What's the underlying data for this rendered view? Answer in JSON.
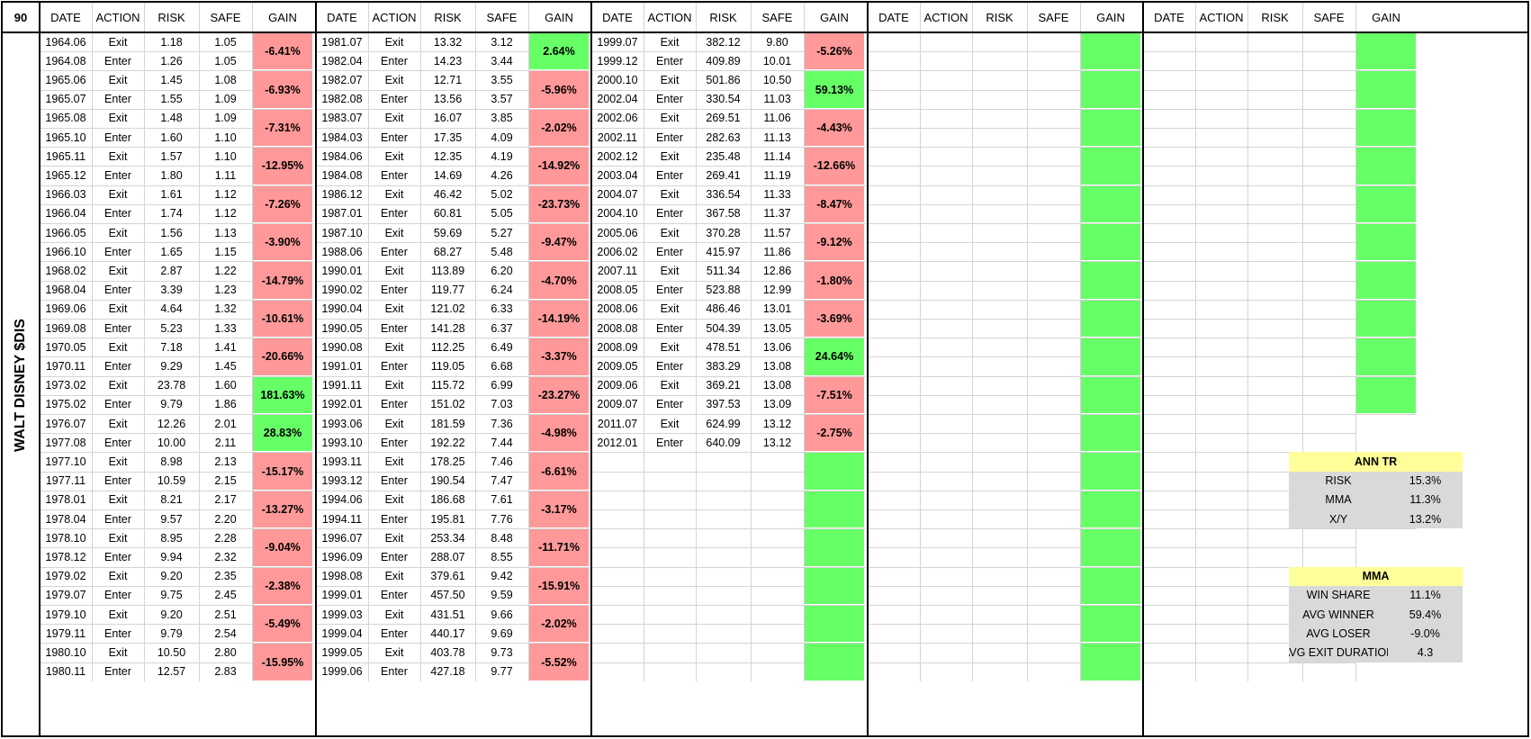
{
  "corner": "90",
  "ticker_label": "WALT DISNEY $DIS",
  "headers": [
    "DATE",
    "ACTION",
    "RISK",
    "SAFE",
    "GAIN"
  ],
  "colors": {
    "loss": "#ff9999",
    "win": "#66ff66",
    "summary_header": "#ffff99",
    "summary_body": "#d9d9d9"
  },
  "blocks": [
    {
      "trades": [
        {
          "exit_date": "1964.06",
          "exit_action": "Exit",
          "exit_risk": "1.18",
          "exit_safe": "1.05",
          "enter_date": "1964.08",
          "enter_action": "Enter",
          "enter_risk": "1.26",
          "enter_safe": "1.05",
          "gain": "-6.41%"
        },
        {
          "exit_date": "1965.06",
          "exit_action": "Exit",
          "exit_risk": "1.45",
          "exit_safe": "1.08",
          "enter_date": "1965.07",
          "enter_action": "Enter",
          "enter_risk": "1.55",
          "enter_safe": "1.09",
          "gain": "-6.93%"
        },
        {
          "exit_date": "1965.08",
          "exit_action": "Exit",
          "exit_risk": "1.48",
          "exit_safe": "1.09",
          "enter_date": "1965.10",
          "enter_action": "Enter",
          "enter_risk": "1.60",
          "enter_safe": "1.10",
          "gain": "-7.31%"
        },
        {
          "exit_date": "1965.11",
          "exit_action": "Exit",
          "exit_risk": "1.57",
          "exit_safe": "1.10",
          "enter_date": "1965.12",
          "enter_action": "Enter",
          "enter_risk": "1.80",
          "enter_safe": "1.11",
          "gain": "-12.95%"
        },
        {
          "exit_date": "1966.03",
          "exit_action": "Exit",
          "exit_risk": "1.61",
          "exit_safe": "1.12",
          "enter_date": "1966.04",
          "enter_action": "Enter",
          "enter_risk": "1.74",
          "enter_safe": "1.12",
          "gain": "-7.26%"
        },
        {
          "exit_date": "1966.05",
          "exit_action": "Exit",
          "exit_risk": "1.56",
          "exit_safe": "1.13",
          "enter_date": "1966.10",
          "enter_action": "Enter",
          "enter_risk": "1.65",
          "enter_safe": "1.15",
          "gain": "-3.90%"
        },
        {
          "exit_date": "1968.02",
          "exit_action": "Exit",
          "exit_risk": "2.87",
          "exit_safe": "1.22",
          "enter_date": "1968.04",
          "enter_action": "Enter",
          "enter_risk": "3.39",
          "enter_safe": "1.23",
          "gain": "-14.79%"
        },
        {
          "exit_date": "1969.06",
          "exit_action": "Exit",
          "exit_risk": "4.64",
          "exit_safe": "1.32",
          "enter_date": "1969.08",
          "enter_action": "Enter",
          "enter_risk": "5.23",
          "enter_safe": "1.33",
          "gain": "-10.61%"
        },
        {
          "exit_date": "1970.05",
          "exit_action": "Exit",
          "exit_risk": "7.18",
          "exit_safe": "1.41",
          "enter_date": "1970.11",
          "enter_action": "Enter",
          "enter_risk": "9.29",
          "enter_safe": "1.45",
          "gain": "-20.66%"
        },
        {
          "exit_date": "1973.02",
          "exit_action": "Exit",
          "exit_risk": "23.78",
          "exit_safe": "1.60",
          "enter_date": "1975.02",
          "enter_action": "Enter",
          "enter_risk": "9.79",
          "enter_safe": "1.86",
          "gain": "181.63%"
        },
        {
          "exit_date": "1976.07",
          "exit_action": "Exit",
          "exit_risk": "12.26",
          "exit_safe": "2.01",
          "enter_date": "1977.08",
          "enter_action": "Enter",
          "enter_risk": "10.00",
          "enter_safe": "2.11",
          "gain": "28.83%"
        },
        {
          "exit_date": "1977.10",
          "exit_action": "Exit",
          "exit_risk": "8.98",
          "exit_safe": "2.13",
          "enter_date": "1977.11",
          "enter_action": "Enter",
          "enter_risk": "10.59",
          "enter_safe": "2.15",
          "gain": "-15.17%"
        },
        {
          "exit_date": "1978.01",
          "exit_action": "Exit",
          "exit_risk": "8.21",
          "exit_safe": "2.17",
          "enter_date": "1978.04",
          "enter_action": "Enter",
          "enter_risk": "9.57",
          "enter_safe": "2.20",
          "gain": "-13.27%"
        },
        {
          "exit_date": "1978.10",
          "exit_action": "Exit",
          "exit_risk": "8.95",
          "exit_safe": "2.28",
          "enter_date": "1978.12",
          "enter_action": "Enter",
          "enter_risk": "9.94",
          "enter_safe": "2.32",
          "gain": "-9.04%"
        },
        {
          "exit_date": "1979.02",
          "exit_action": "Exit",
          "exit_risk": "9.20",
          "exit_safe": "2.35",
          "enter_date": "1979.07",
          "enter_action": "Enter",
          "enter_risk": "9.75",
          "enter_safe": "2.45",
          "gain": "-2.38%"
        },
        {
          "exit_date": "1979.10",
          "exit_action": "Exit",
          "exit_risk": "9.20",
          "exit_safe": "2.51",
          "enter_date": "1979.11",
          "enter_action": "Enter",
          "enter_risk": "9.79",
          "enter_safe": "2.54",
          "gain": "-5.49%"
        },
        {
          "exit_date": "1980.10",
          "exit_action": "Exit",
          "exit_risk": "10.50",
          "exit_safe": "2.80",
          "enter_date": "1980.11",
          "enter_action": "Enter",
          "enter_risk": "12.57",
          "enter_safe": "2.83",
          "gain": "-15.95%"
        }
      ]
    },
    {
      "trades": [
        {
          "exit_date": "1981.07",
          "exit_action": "Exit",
          "exit_risk": "13.32",
          "exit_safe": "3.12",
          "enter_date": "1982.04",
          "enter_action": "Enter",
          "enter_risk": "14.23",
          "enter_safe": "3.44",
          "gain": "2.64%"
        },
        {
          "exit_date": "1982.07",
          "exit_action": "Exit",
          "exit_risk": "12.71",
          "exit_safe": "3.55",
          "enter_date": "1982.08",
          "enter_action": "Enter",
          "enter_risk": "13.56",
          "enter_safe": "3.57",
          "gain": "-5.96%"
        },
        {
          "exit_date": "1983.07",
          "exit_action": "Exit",
          "exit_risk": "16.07",
          "exit_safe": "3.85",
          "enter_date": "1984.03",
          "enter_action": "Enter",
          "enter_risk": "17.35",
          "enter_safe": "4.09",
          "gain": "-2.02%"
        },
        {
          "exit_date": "1984.06",
          "exit_action": "Exit",
          "exit_risk": "12.35",
          "exit_safe": "4.19",
          "enter_date": "1984.08",
          "enter_action": "Enter",
          "enter_risk": "14.69",
          "enter_safe": "4.26",
          "gain": "-14.92%"
        },
        {
          "exit_date": "1986.12",
          "exit_action": "Exit",
          "exit_risk": "46.42",
          "exit_safe": "5.02",
          "enter_date": "1987.01",
          "enter_action": "Enter",
          "enter_risk": "60.81",
          "enter_safe": "5.05",
          "gain": "-23.73%"
        },
        {
          "exit_date": "1987.10",
          "exit_action": "Exit",
          "exit_risk": "59.69",
          "exit_safe": "5.27",
          "enter_date": "1988.06",
          "enter_action": "Enter",
          "enter_risk": "68.27",
          "enter_safe": "5.48",
          "gain": "-9.47%"
        },
        {
          "exit_date": "1990.01",
          "exit_action": "Exit",
          "exit_risk": "113.89",
          "exit_safe": "6.20",
          "enter_date": "1990.02",
          "enter_action": "Enter",
          "enter_risk": "119.77",
          "enter_safe": "6.24",
          "gain": "-4.70%"
        },
        {
          "exit_date": "1990.04",
          "exit_action": "Exit",
          "exit_risk": "121.02",
          "exit_safe": "6.33",
          "enter_date": "1990.05",
          "enter_action": "Enter",
          "enter_risk": "141.28",
          "enter_safe": "6.37",
          "gain": "-14.19%"
        },
        {
          "exit_date": "1990.08",
          "exit_action": "Exit",
          "exit_risk": "112.25",
          "exit_safe": "6.49",
          "enter_date": "1991.01",
          "enter_action": "Enter",
          "enter_risk": "119.05",
          "enter_safe": "6.68",
          "gain": "-3.37%"
        },
        {
          "exit_date": "1991.11",
          "exit_action": "Exit",
          "exit_risk": "115.72",
          "exit_safe": "6.99",
          "enter_date": "1992.01",
          "enter_action": "Enter",
          "enter_risk": "151.02",
          "enter_safe": "7.03",
          "gain": "-23.27%"
        },
        {
          "exit_date": "1993.06",
          "exit_action": "Exit",
          "exit_risk": "181.59",
          "exit_safe": "7.36",
          "enter_date": "1993.10",
          "enter_action": "Enter",
          "enter_risk": "192.22",
          "enter_safe": "7.44",
          "gain": "-4.98%"
        },
        {
          "exit_date": "1993.11",
          "exit_action": "Exit",
          "exit_risk": "178.25",
          "exit_safe": "7.46",
          "enter_date": "1993.12",
          "enter_action": "Enter",
          "enter_risk": "190.54",
          "enter_safe": "7.47",
          "gain": "-6.61%"
        },
        {
          "exit_date": "1994.06",
          "exit_action": "Exit",
          "exit_risk": "186.68",
          "exit_safe": "7.61",
          "enter_date": "1994.11",
          "enter_action": "Enter",
          "enter_risk": "195.81",
          "enter_safe": "7.76",
          "gain": "-3.17%"
        },
        {
          "exit_date": "1996.07",
          "exit_action": "Exit",
          "exit_risk": "253.34",
          "exit_safe": "8.48",
          "enter_date": "1996.09",
          "enter_action": "Enter",
          "enter_risk": "288.07",
          "enter_safe": "8.55",
          "gain": "-11.71%"
        },
        {
          "exit_date": "1998.08",
          "exit_action": "Exit",
          "exit_risk": "379.61",
          "exit_safe": "9.42",
          "enter_date": "1999.01",
          "enter_action": "Enter",
          "enter_risk": "457.50",
          "enter_safe": "9.59",
          "gain": "-15.91%"
        },
        {
          "exit_date": "1999.03",
          "exit_action": "Exit",
          "exit_risk": "431.51",
          "exit_safe": "9.66",
          "enter_date": "1999.04",
          "enter_action": "Enter",
          "enter_risk": "440.17",
          "enter_safe": "9.69",
          "gain": "-2.02%"
        },
        {
          "exit_date": "1999.05",
          "exit_action": "Exit",
          "exit_risk": "403.78",
          "exit_safe": "9.73",
          "enter_date": "1999.06",
          "enter_action": "Enter",
          "enter_risk": "427.18",
          "enter_safe": "9.77",
          "gain": "-5.52%"
        }
      ]
    },
    {
      "trades": [
        {
          "exit_date": "1999.07",
          "exit_action": "Exit",
          "exit_risk": "382.12",
          "exit_safe": "9.80",
          "enter_date": "1999.12",
          "enter_action": "Enter",
          "enter_risk": "409.89",
          "enter_safe": "10.01",
          "gain": "-5.26%"
        },
        {
          "exit_date": "2000.10",
          "exit_action": "Exit",
          "exit_risk": "501.86",
          "exit_safe": "10.50",
          "enter_date": "2002.04",
          "enter_action": "Enter",
          "enter_risk": "330.54",
          "enter_safe": "11.03",
          "gain": "59.13%"
        },
        {
          "exit_date": "2002.06",
          "exit_action": "Exit",
          "exit_risk": "269.51",
          "exit_safe": "11.06",
          "enter_date": "2002.11",
          "enter_action": "Enter",
          "enter_risk": "282.63",
          "enter_safe": "11.13",
          "gain": "-4.43%"
        },
        {
          "exit_date": "2002.12",
          "exit_action": "Exit",
          "exit_risk": "235.48",
          "exit_safe": "11.14",
          "enter_date": "2003.04",
          "enter_action": "Enter",
          "enter_risk": "269.41",
          "enter_safe": "11.19",
          "gain": "-12.66%"
        },
        {
          "exit_date": "2004.07",
          "exit_action": "Exit",
          "exit_risk": "336.54",
          "exit_safe": "11.33",
          "enter_date": "2004.10",
          "enter_action": "Enter",
          "enter_risk": "367.58",
          "enter_safe": "11.37",
          "gain": "-8.47%"
        },
        {
          "exit_date": "2005.06",
          "exit_action": "Exit",
          "exit_risk": "370.28",
          "exit_safe": "11.57",
          "enter_date": "2006.02",
          "enter_action": "Enter",
          "enter_risk": "415.97",
          "enter_safe": "11.86",
          "gain": "-9.12%"
        },
        {
          "exit_date": "2007.11",
          "exit_action": "Exit",
          "exit_risk": "511.34",
          "exit_safe": "12.86",
          "enter_date": "2008.05",
          "enter_action": "Enter",
          "enter_risk": "523.88",
          "enter_safe": "12.99",
          "gain": "-1.80%"
        },
        {
          "exit_date": "2008.06",
          "exit_action": "Exit",
          "exit_risk": "486.46",
          "exit_safe": "13.01",
          "enter_date": "2008.08",
          "enter_action": "Enter",
          "enter_risk": "504.39",
          "enter_safe": "13.05",
          "gain": "-3.69%"
        },
        {
          "exit_date": "2008.09",
          "exit_action": "Exit",
          "exit_risk": "478.51",
          "exit_safe": "13.06",
          "enter_date": "2009.05",
          "enter_action": "Enter",
          "enter_risk": "383.29",
          "enter_safe": "13.08",
          "gain": "24.64%"
        },
        {
          "exit_date": "2009.06",
          "exit_action": "Exit",
          "exit_risk": "369.21",
          "exit_safe": "13.08",
          "enter_date": "2009.07",
          "enter_action": "Enter",
          "enter_risk": "397.53",
          "enter_safe": "13.09",
          "gain": "-7.51%"
        },
        {
          "exit_date": "2011.07",
          "exit_action": "Exit",
          "exit_risk": "624.99",
          "exit_safe": "13.12",
          "enter_date": "2012.01",
          "enter_action": "Enter",
          "enter_risk": "640.09",
          "enter_safe": "13.12",
          "gain": "-2.75%"
        }
      ],
      "empty_green_cells": 6
    },
    {
      "trades": [],
      "empty_green_cells": 17
    },
    {
      "trades": [],
      "empty_green_cells": 10
    }
  ],
  "summary": {
    "ann_tr": {
      "title": "ANN TR",
      "rows": [
        {
          "label": "RISK",
          "value": "15.3%"
        },
        {
          "label": "MMA",
          "value": "11.3%"
        },
        {
          "label": "X/Y",
          "value": "13.2%"
        }
      ]
    },
    "mma": {
      "title": "MMA",
      "rows": [
        {
          "label": "WIN SHARE",
          "value": "11.1%"
        },
        {
          "label": "AVG WINNER",
          "value": "59.4%"
        },
        {
          "label": "AVG LOSER",
          "value": "-9.0%"
        },
        {
          "label": "AVG EXIT DURATION",
          "value": "4.3"
        }
      ]
    }
  }
}
